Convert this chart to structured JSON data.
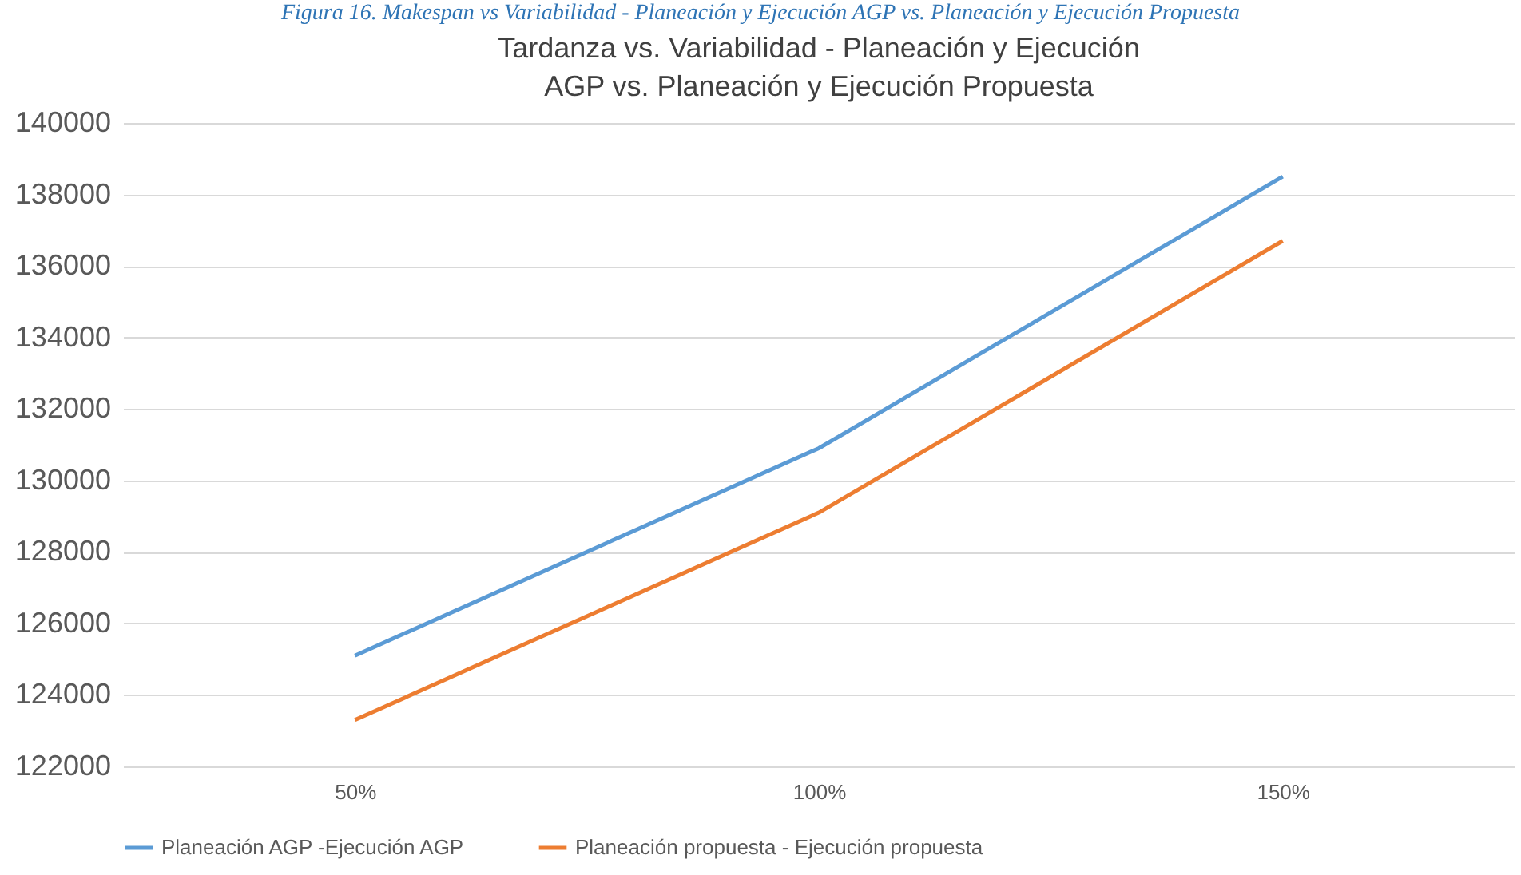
{
  "chart_data": {
    "type": "line",
    "title": "Tardanza vs. Variabilidad - Planeación y Ejecución AGP vs. Planeación y Ejecución Propuesta",
    "annotations": [
      "Figura 16. Makespan vs Variabilidad - Planeación y Ejecución AGP vs. Planeación y Ejecución Propuesta"
    ],
    "categories": [
      "50%",
      "100%",
      "150%"
    ],
    "series": [
      {
        "name": "Planeación AGP -Ejecución AGP",
        "color": "#5b9bd5",
        "values": [
          125100,
          130900,
          138500
        ]
      },
      {
        "name": "Planeación propuesta - Ejecución propuesta",
        "color": "#ed7d31",
        "values": [
          123300,
          129100,
          136700
        ]
      }
    ],
    "ylim": [
      122000,
      140000
    ],
    "yticks": [
      122000,
      124000,
      126000,
      128000,
      130000,
      132000,
      134000,
      136000,
      138000,
      140000
    ],
    "grid": "y",
    "legend": "bottom",
    "marker": "none",
    "line_style": "solid"
  }
}
